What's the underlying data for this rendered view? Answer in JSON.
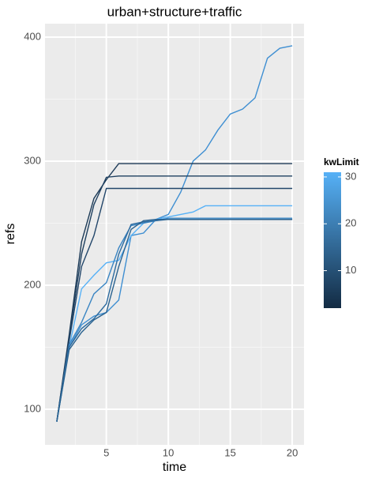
{
  "chart_data": {
    "type": "line",
    "title": "urban+structure+traffic",
    "xlabel": "time",
    "ylabel": "refs",
    "x": [
      1,
      2,
      3,
      4,
      5,
      6,
      7,
      8,
      9,
      10,
      11,
      12,
      13,
      14,
      15,
      16,
      17,
      18,
      19,
      20
    ],
    "series": [
      {
        "color": "#3f8fd2",
        "values": [
          90,
          150,
          168,
          175,
          178,
          188,
          240,
          242,
          253,
          257,
          275,
          300,
          309,
          325,
          338,
          342,
          351,
          383,
          391,
          393
        ]
      },
      {
        "color": "#1c3a57",
        "values": [
          90,
          160,
          235,
          270,
          285,
          298,
          298,
          298,
          298,
          298,
          298,
          298,
          298,
          298,
          298,
          298,
          298,
          298,
          298,
          298
        ]
      },
      {
        "color": "#1f4060",
        "values": [
          90,
          158,
          225,
          265,
          287,
          288,
          288,
          288,
          288,
          288,
          288,
          288,
          288,
          288,
          288,
          288,
          288,
          288,
          288,
          288
        ]
      },
      {
        "color": "#22466a",
        "values": [
          90,
          155,
          215,
          240,
          278,
          278,
          278,
          278,
          278,
          278,
          278,
          278,
          278,
          278,
          278,
          278,
          278,
          278,
          278,
          278
        ]
      },
      {
        "color": "#56b1f7",
        "values": [
          90,
          150,
          197,
          208,
          218,
          220,
          240,
          250,
          253,
          255,
          257,
          259,
          264,
          264,
          264,
          264,
          264,
          264,
          264,
          264
        ]
      },
      {
        "color": "#3a85c3",
        "values": [
          90,
          152,
          170,
          193,
          202,
          230,
          248,
          250,
          252,
          254,
          254,
          254,
          254,
          254,
          254,
          254,
          254,
          254,
          254,
          254
        ]
      },
      {
        "color": "#2d6b9f",
        "values": [
          90,
          150,
          165,
          173,
          185,
          225,
          249,
          251,
          252,
          253,
          253,
          253,
          253,
          253,
          253,
          253,
          253,
          253,
          253,
          253
        ]
      },
      {
        "color": "#2a628f",
        "values": [
          90,
          148,
          162,
          172,
          178,
          215,
          245,
          252,
          253,
          253,
          253,
          253,
          253,
          253,
          253,
          253,
          253,
          253,
          253,
          253
        ]
      }
    ],
    "xlim": [
      0.05,
      20.95
    ],
    "ylim": [
      71.3,
      410.8
    ],
    "xticks": [
      5,
      10,
      15,
      20
    ],
    "yticks": [
      100,
      200,
      300,
      400
    ],
    "grid": true,
    "colorbar": {
      "title": "kwLimit",
      "lim": [
        2,
        31
      ],
      "ticks": [
        10,
        20,
        30
      ],
      "low": "#132B43",
      "high": "#56B1F7"
    }
  }
}
